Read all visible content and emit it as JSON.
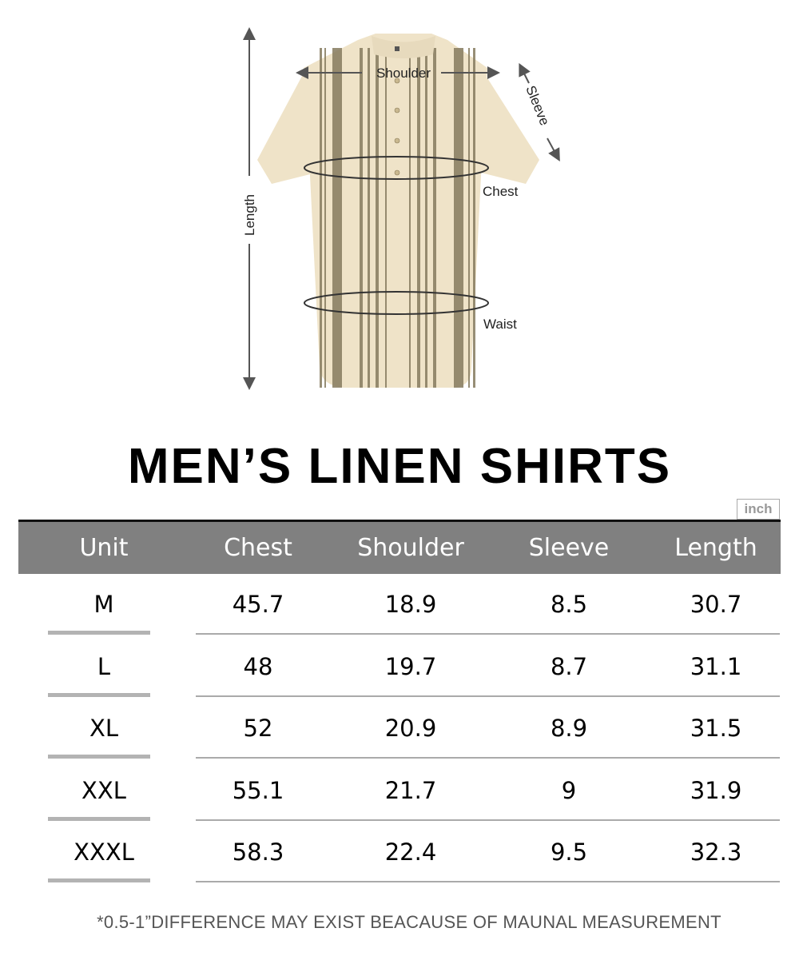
{
  "diagram": {
    "labels": {
      "shoulder": "Shoulder",
      "sleeve": "Sleeve",
      "chest": "Chest",
      "waist": "Waist",
      "length": "Length"
    },
    "shirt_color": "#efe3c8",
    "stripe_color": "#857a5e"
  },
  "title": "MEN’S LINEN SHIRTS",
  "unit_badge": "inch",
  "table": {
    "header_color": "#808080",
    "columns": [
      "Unit",
      "Chest",
      "Shoulder",
      "Sleeve",
      "Length"
    ],
    "rows": [
      [
        "M",
        "45.7",
        "18.9",
        "8.5",
        "30.7"
      ],
      [
        "L",
        "48",
        "19.7",
        "8.7",
        "31.1"
      ],
      [
        "XL",
        "52",
        "20.9",
        "8.9",
        "31.5"
      ],
      [
        "XXL",
        "55.1",
        "21.7",
        "9",
        "31.9"
      ],
      [
        "XXXL",
        "58.3",
        "22.4",
        "9.5",
        "32.3"
      ]
    ]
  },
  "footnote": "*0.5-1”DIFFERENCE MAY EXIST BEACAUSE OF MAUNAL MEASUREMENT"
}
